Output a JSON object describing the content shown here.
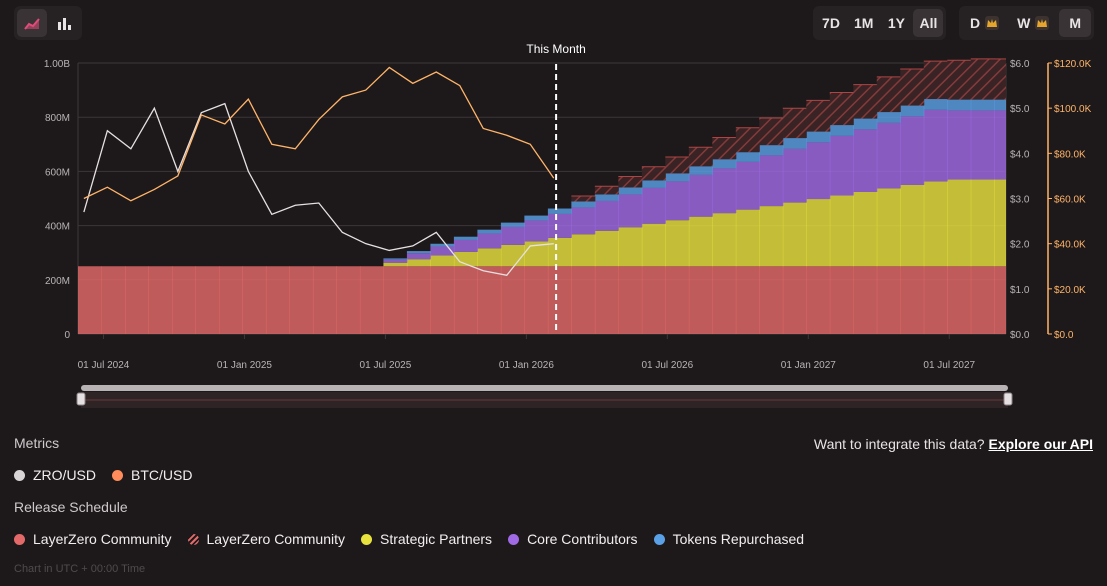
{
  "toolbar": {
    "chart_type_buttons": [
      {
        "icon": "area-chart-icon",
        "active": true
      },
      {
        "icon": "bar-chart-icon",
        "active": false
      }
    ],
    "ranges": [
      "7D",
      "1M",
      "1Y",
      "All"
    ],
    "active_range": "All",
    "intervals": [
      {
        "label": "D",
        "premium": true
      },
      {
        "label": "W",
        "premium": true
      },
      {
        "label": "M",
        "premium": false
      }
    ],
    "active_interval": "M"
  },
  "colors": {
    "community": "#e46a6a",
    "strategic": "#e8e23e",
    "core": "#a06ae6",
    "repurchased": "#5aa0e6",
    "zro_line": "#e6e0e2",
    "btc_line": "#ffb469",
    "marker": "#ffffff"
  },
  "chart_data": {
    "type": "area",
    "marker_label": "This Month",
    "x_ticks": [
      "01 Jul 2024",
      "01 Jan 2025",
      "01 Jul 2025",
      "01 Jan 2026",
      "01 Jul 2026",
      "01 Jan 2027",
      "01 Jul 2027"
    ],
    "supply_axis": {
      "ticks": [
        "0",
        "200M",
        "400M",
        "600M",
        "800M",
        "1.00B"
      ],
      "range": [
        0,
        1000000000
      ]
    },
    "zro_axis": {
      "ticks": [
        "$0.0",
        "$1.0",
        "$2.0",
        "$3.0",
        "$4.0",
        "$5.0",
        "$6.0"
      ],
      "range": [
        0,
        6
      ]
    },
    "btc_axis": {
      "ticks": [
        "$0.0",
        "$20.0K",
        "$40.0K",
        "$60.0K",
        "$80.0K",
        "$100.0K",
        "$120.0K"
      ],
      "range": [
        0,
        120000
      ]
    },
    "months": [
      "2024-06",
      "2024-07",
      "2024-08",
      "2024-09",
      "2024-10",
      "2024-11",
      "2024-12",
      "2025-01",
      "2025-02",
      "2025-03",
      "2025-04",
      "2025-05",
      "2025-06",
      "2025-07",
      "2025-08",
      "2025-09",
      "2025-10",
      "2025-11",
      "2025-12",
      "2026-01",
      "2026-02",
      "2026-03",
      "2026-04",
      "2026-05",
      "2026-06",
      "2026-07",
      "2026-08",
      "2026-09",
      "2026-10",
      "2026-11",
      "2026-12",
      "2027-01",
      "2027-02",
      "2027-03",
      "2027-04",
      "2027-05",
      "2027-06",
      "2027-07",
      "2027-08",
      "2027-09"
    ],
    "this_month": "2026-02",
    "series": [
      {
        "name": "ZRO/USD",
        "axis": "zro",
        "x": [
          "2024-06",
          "2024-07",
          "2024-08",
          "2024-09",
          "2024-10",
          "2024-11",
          "2024-12",
          "2025-01",
          "2025-02",
          "2025-03",
          "2025-04",
          "2025-05",
          "2025-06",
          "2025-07",
          "2025-08",
          "2025-09",
          "2025-10",
          "2025-11",
          "2025-12",
          "2026-01",
          "2026-02"
        ],
        "values": [
          2.7,
          4.5,
          4.1,
          5.0,
          3.6,
          4.9,
          5.1,
          3.6,
          2.65,
          2.85,
          2.9,
          2.25,
          2.0,
          1.85,
          1.95,
          2.25,
          1.6,
          1.4,
          1.3,
          1.95,
          2.0
        ]
      },
      {
        "name": "BTC/USD",
        "axis": "btc",
        "x": [
          "2024-06",
          "2024-07",
          "2024-08",
          "2024-09",
          "2024-10",
          "2024-11",
          "2024-12",
          "2025-01",
          "2025-02",
          "2025-03",
          "2025-04",
          "2025-05",
          "2025-06",
          "2025-07",
          "2025-08",
          "2025-09",
          "2025-10",
          "2025-11",
          "2025-12",
          "2026-01",
          "2026-02"
        ],
        "values": [
          60000,
          65000,
          59000,
          64000,
          70000,
          97000,
          93000,
          104000,
          84000,
          82000,
          95000,
          105000,
          108000,
          118000,
          111000,
          116000,
          110000,
          91000,
          88000,
          84000,
          69000
        ]
      },
      {
        "name": "LayerZero Community",
        "stack": "supply",
        "from": "2024-06",
        "values": [
          250000000,
          250000000,
          250000000,
          250000000,
          250000000,
          250000000,
          250000000,
          250000000,
          250000000,
          250000000,
          250000000,
          250000000,
          250000000,
          250000000,
          250000000,
          250000000,
          250000000,
          250000000,
          250000000,
          250000000,
          250000000,
          250000000,
          250000000,
          250000000,
          250000000,
          250000000,
          250000000,
          250000000,
          250000000,
          250000000,
          250000000,
          250000000,
          250000000,
          250000000,
          250000000,
          250000000,
          250000000,
          250000000,
          250000000,
          250000000
        ]
      },
      {
        "name": "Strategic Partners",
        "stack": "supply",
        "from": "2025-07",
        "values": [
          13000000,
          26000000,
          40000000,
          53000000,
          66000000,
          79000000,
          92000000,
          105000000,
          118000000,
          131000000,
          144000000,
          157000000,
          170000000,
          183000000,
          196000000,
          209000000,
          222000000,
          235000000,
          248000000,
          261000000,
          274000000,
          287000000,
          300000000,
          313000000,
          320000000,
          320000000,
          320000000
        ]
      },
      {
        "name": "Core Contributors",
        "stack": "supply",
        "from": "2025-07",
        "values": [
          11000000,
          22000000,
          33000000,
          44000000,
          55000000,
          66000000,
          77000000,
          88000000,
          99000000,
          110000000,
          121000000,
          132000000,
          143000000,
          154000000,
          165000000,
          176000000,
          187000000,
          198000000,
          209000000,
          220000000,
          231000000,
          242000000,
          253000000,
          264000000,
          255000000,
          255000000,
          255000000
        ]
      },
      {
        "name": "Tokens Repurchased",
        "stack": "supply",
        "from": "2025-07",
        "values": [
          5000000,
          8000000,
          10000000,
          12000000,
          14000000,
          16000000,
          18000000,
          20000000,
          22000000,
          24000000,
          26000000,
          28000000,
          30000000,
          32000000,
          34000000,
          36000000,
          38000000,
          40000000,
          40000000,
          40000000,
          40000000,
          40000000,
          40000000,
          40000000,
          40000000,
          40000000,
          40000000
        ]
      },
      {
        "name": "LayerZero Community",
        "pattern": "hatched",
        "stack": "supply",
        "from": "2026-03",
        "values": [
          20000000,
          30000000,
          40000000,
          50000000,
          60000000,
          70000000,
          80000000,
          90000000,
          100000000,
          110000000,
          115000000,
          120000000,
          125000000,
          130000000,
          135000000,
          140000000,
          145000000,
          150000000,
          150000000
        ]
      }
    ]
  },
  "legend": {
    "metrics_title": "Metrics",
    "metrics": [
      {
        "label": "ZRO/USD",
        "color": "#d9d4d6"
      },
      {
        "label": "BTC/USD",
        "color": "#ff8c5a"
      }
    ],
    "release_title": "Release Schedule",
    "release": [
      {
        "label": "LayerZero Community",
        "color": "#e46a6a",
        "hatched": false
      },
      {
        "label": "LayerZero Community",
        "color": "#e46a6a",
        "hatched": true
      },
      {
        "label": "Strategic Partners",
        "color": "#e8e23e",
        "hatched": false
      },
      {
        "label": "Core Contributors",
        "color": "#a06ae6",
        "hatched": false
      },
      {
        "label": "Tokens Repurchased",
        "color": "#5aa0e6",
        "hatched": false
      }
    ]
  },
  "integrate": {
    "text": "Want to integrate this data?",
    "link": "Explore our API"
  },
  "footnote": "Chart in UTC + 00:00 Time"
}
